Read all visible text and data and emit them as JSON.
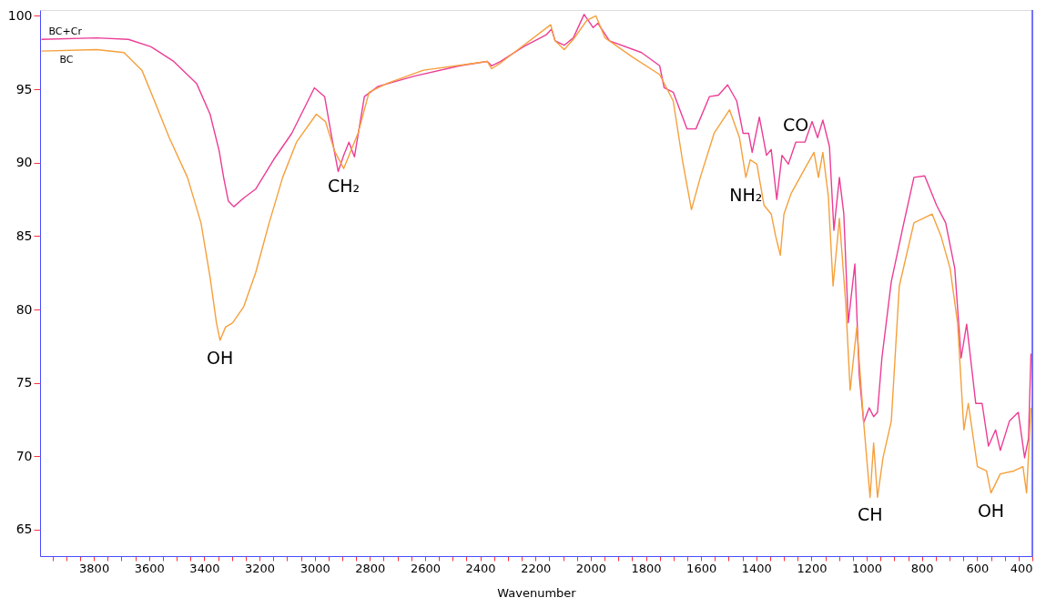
{
  "chart_data": {
    "type": "line",
    "xlabel": "Wavenumber",
    "xlim": [
      3995,
      400
    ],
    "ylim": [
      63.2,
      100.4
    ],
    "xticks": [
      3800,
      3600,
      3400,
      3200,
      3000,
      2800,
      2600,
      2400,
      2200,
      2000,
      1800,
      1600,
      1400,
      1200,
      1000,
      800,
      600,
      400,
      {
        "value": 3950,
        "label": null
      },
      {
        "value": 3900,
        "label": null
      },
      {
        "value": 3850,
        "label": null
      },
      {
        "value": 3750,
        "label": null
      },
      {
        "value": 3700,
        "label": null
      },
      {
        "value": 3650,
        "label": null
      },
      {
        "value": 3550,
        "label": null
      },
      {
        "value": 3500,
        "label": null
      },
      {
        "value": 3450,
        "label": null
      },
      {
        "value": 3350,
        "label": null
      },
      {
        "value": 3300,
        "label": null
      },
      {
        "value": 3250,
        "label": null
      },
      {
        "value": 3150,
        "label": null
      },
      {
        "value": 3100,
        "label": null
      },
      {
        "value": 3050,
        "label": null
      },
      {
        "value": 2950,
        "label": null
      },
      {
        "value": 2900,
        "label": null
      },
      {
        "value": 2850,
        "label": null
      },
      {
        "value": 2750,
        "label": null
      },
      {
        "value": 2700,
        "label": null
      },
      {
        "value": 2650,
        "label": null
      },
      {
        "value": 2550,
        "label": null
      },
      {
        "value": 2500,
        "label": null
      },
      {
        "value": 2450,
        "label": null
      },
      {
        "value": 2350,
        "label": null
      },
      {
        "value": 2300,
        "label": null
      },
      {
        "value": 2250,
        "label": null
      },
      {
        "value": 2150,
        "label": null
      },
      {
        "value": 2100,
        "label": null
      },
      {
        "value": 2050,
        "label": null
      },
      {
        "value": 1950,
        "label": null
      },
      {
        "value": 1900,
        "label": null
      },
      {
        "value": 1850,
        "label": null
      },
      {
        "value": 1750,
        "label": null
      },
      {
        "value": 1700,
        "label": null
      },
      {
        "value": 1650,
        "label": null
      },
      {
        "value": 1550,
        "label": null
      },
      {
        "value": 1500,
        "label": null
      },
      {
        "value": 1450,
        "label": null
      },
      {
        "value": 1350,
        "label": null
      },
      {
        "value": 1300,
        "label": null
      },
      {
        "value": 1250,
        "label": null
      },
      {
        "value": 1150,
        "label": null
      },
      {
        "value": 1100,
        "label": null
      },
      {
        "value": 1050,
        "label": null
      },
      {
        "value": 950,
        "label": null
      },
      {
        "value": 900,
        "label": null
      },
      {
        "value": 850,
        "label": null
      },
      {
        "value": 750,
        "label": null
      },
      {
        "value": 700,
        "label": null
      },
      {
        "value": 650,
        "label": null
      },
      {
        "value": 550,
        "label": null
      },
      {
        "value": 500,
        "label": null
      },
      {
        "value": 450,
        "label": null
      }
    ],
    "yticks": [
      65,
      70,
      75,
      80,
      85,
      90,
      95,
      100
    ],
    "grid": false,
    "annotations": [
      {
        "text": "OH",
        "x": 3343,
        "y": 77.9
      },
      {
        "text": "CH₂",
        "x": 2895,
        "y": 89.6
      },
      {
        "text": "NH₂",
        "x": 1438,
        "y": 89.0
      },
      {
        "text": "CO",
        "x": 1257,
        "y": 91.4
      },
      {
        "text": "CH",
        "x": 988,
        "y": 67.2
      },
      {
        "text": "OH",
        "x": 550,
        "y": 67.5
      }
    ],
    "series": [
      {
        "name": "BC+Cr",
        "color": "#ec3d96",
        "x": [
          3990,
          3790,
          3675,
          3593,
          3511,
          3428,
          3379,
          3346,
          3330,
          3313,
          3293,
          3257,
          3214,
          3149,
          3083,
          3001,
          2964,
          2935,
          2915,
          2895,
          2876,
          2856,
          2820,
          2770,
          2639,
          2474,
          2375,
          2359,
          2326,
          2244,
          2162,
          2142,
          2129,
          2096,
          2063,
          2024,
          1991,
          1974,
          1932,
          1816,
          1750,
          1734,
          1701,
          1651,
          1619,
          1570,
          1537,
          1504,
          1471,
          1448,
          1428,
          1415,
          1389,
          1363,
          1346,
          1326,
          1307,
          1284,
          1257,
          1224,
          1198,
          1178,
          1159,
          1135,
          1119,
          1099,
          1083,
          1067,
          1043,
          1027,
          1011,
          991,
          975,
          961,
          945,
          911,
          869,
          829,
          790,
          747,
          714,
          681,
          658,
          638,
          605,
          582,
          559,
          533,
          516,
          483,
          451,
          428,
          414,
          405
        ],
        "values": [
          98.4,
          98.5,
          98.4,
          97.9,
          96.9,
          95.4,
          93.3,
          90.8,
          89.0,
          87.4,
          87.0,
          87.6,
          88.2,
          90.2,
          92.0,
          95.1,
          94.5,
          91.4,
          89.4,
          90.5,
          91.4,
          90.4,
          94.5,
          95.2,
          95.9,
          96.6,
          96.9,
          96.6,
          96.9,
          97.9,
          98.7,
          99.1,
          98.3,
          98.0,
          98.5,
          100.1,
          99.2,
          99.5,
          98.3,
          97.5,
          96.6,
          95.1,
          94.8,
          92.3,
          92.3,
          94.5,
          94.6,
          95.3,
          94.2,
          92.0,
          92.0,
          90.7,
          93.1,
          90.5,
          90.9,
          87.5,
          90.5,
          89.9,
          91.4,
          91.4,
          92.8,
          91.7,
          92.9,
          91.1,
          85.4,
          89.0,
          86.5,
          79.1,
          83.1,
          75.5,
          72.3,
          73.3,
          72.7,
          73.0,
          76.7,
          81.9,
          85.6,
          89.0,
          89.1,
          87.1,
          85.9,
          82.8,
          76.7,
          79.0,
          73.6,
          73.6,
          70.7,
          71.8,
          70.4,
          72.4,
          73.0,
          69.9,
          71.2,
          77.0
        ]
      },
      {
        "name": "BC",
        "color": "#f5a03c",
        "x": [
          3990,
          3790,
          3691,
          3626,
          3576,
          3527,
          3461,
          3412,
          3379,
          3356,
          3343,
          3323,
          3297,
          3257,
          3214,
          3165,
          3116,
          3066,
          2994,
          2961,
          2928,
          2895,
          2869,
          2843,
          2803,
          2738,
          2606,
          2375,
          2359,
          2326,
          2145,
          2129,
          2096,
          2063,
          2014,
          1981,
          1948,
          1849,
          1750,
          1701,
          1668,
          1635,
          1603,
          1553,
          1497,
          1461,
          1438,
          1422,
          1398,
          1372,
          1346,
          1330,
          1313,
          1300,
          1274,
          1224,
          1191,
          1175,
          1159,
          1139,
          1122,
          1099,
          1076,
          1060,
          1036,
          1011,
          988,
          975,
          961,
          941,
          911,
          882,
          829,
          763,
          731,
          698,
          671,
          648,
          632,
          599,
          566,
          550,
          516,
          467,
          434,
          421,
          405
        ],
        "values": [
          97.6,
          97.7,
          97.5,
          96.3,
          94.0,
          91.7,
          89.0,
          85.9,
          82.2,
          79.1,
          77.9,
          78.8,
          79.1,
          80.2,
          82.5,
          85.9,
          89.0,
          91.4,
          93.3,
          92.8,
          90.8,
          89.6,
          90.8,
          92.0,
          94.8,
          95.4,
          96.3,
          96.9,
          96.4,
          96.8,
          99.4,
          98.3,
          97.7,
          98.4,
          99.7,
          100.0,
          98.5,
          97.2,
          96.0,
          94.2,
          90.2,
          86.8,
          89.0,
          92.0,
          93.6,
          91.7,
          89.0,
          90.2,
          89.9,
          87.1,
          86.5,
          85.0,
          83.7,
          86.5,
          87.9,
          89.6,
          90.7,
          89.0,
          90.7,
          87.7,
          81.6,
          86.2,
          80.4,
          74.5,
          78.8,
          72.3,
          67.2,
          70.9,
          67.2,
          69.9,
          72.4,
          81.6,
          85.9,
          86.5,
          85.0,
          82.8,
          79.1,
          71.8,
          73.6,
          69.3,
          69.0,
          67.5,
          68.8,
          69.0,
          69.3,
          67.5,
          73.3
        ]
      }
    ]
  }
}
